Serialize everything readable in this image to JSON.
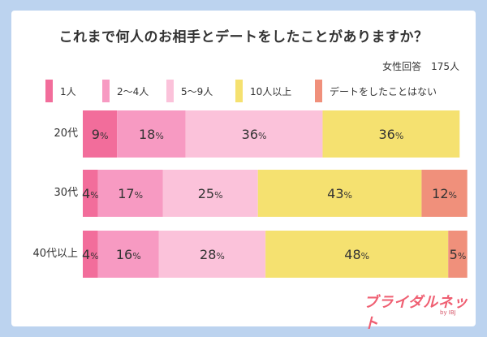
{
  "chart_data": {
    "type": "bar",
    "orientation": "horizontal",
    "stacked": true,
    "title": "これまで何人のお相手とデートをしたことがありますか？",
    "respondents": "女性回答　175人",
    "categories": [
      "20代",
      "30代",
      "40代以上"
    ],
    "series": [
      {
        "name": "1人",
        "color": "#f26d9b",
        "values": [
          9,
          4,
          4
        ]
      },
      {
        "name": "2～4人",
        "color": "#f79ac2",
        "values": [
          18,
          17,
          16
        ]
      },
      {
        "name": "5～9人",
        "color": "#fbc2da",
        "values": [
          36,
          25,
          28
        ]
      },
      {
        "name": "10人以上",
        "color": "#f5e170",
        "values": [
          36,
          43,
          48
        ]
      },
      {
        "name": "デートをしたことはない",
        "color": "#f0907b",
        "values": [
          0,
          12,
          5
        ]
      }
    ],
    "value_suffix": "%",
    "xlim": [
      0,
      100
    ]
  },
  "brand": {
    "name": "ブライダルネット",
    "sub": "by IBJ"
  }
}
